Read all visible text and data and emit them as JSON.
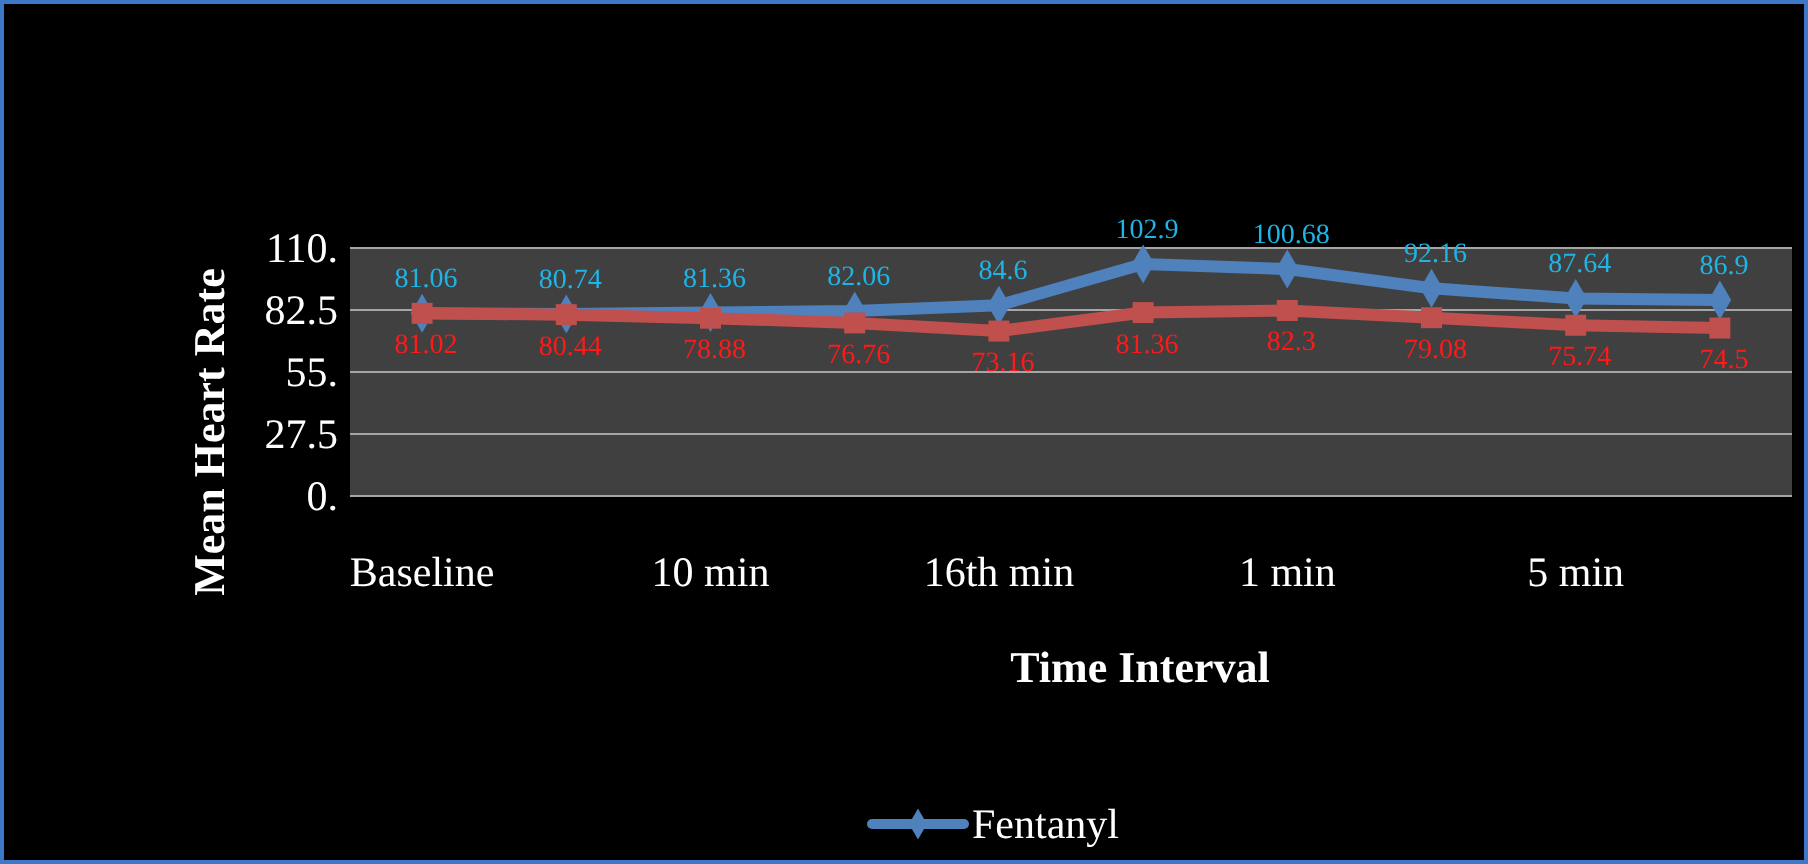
{
  "chart_data": {
    "type": "line",
    "xlabel": "Time Interval",
    "ylabel": "Mean Heart Rate",
    "categories": [
      "Baseline",
      null,
      "10 min",
      null,
      "16th min",
      null,
      "1 min",
      null,
      "5 min",
      null
    ],
    "series": [
      {
        "name": "Fentanyl",
        "color": "#4f81bd",
        "marker": "diamond",
        "values": [
          81.06,
          80.74,
          81.36,
          82.06,
          84.6,
          102.9,
          100.68,
          92.16,
          87.64,
          86.9
        ]
      },
      {
        "color": "#c0504d",
        "marker": "square",
        "values": [
          81.02,
          80.44,
          78.88,
          76.76,
          73.16,
          81.36,
          82.3,
          79.08,
          75.74,
          74.5
        ]
      }
    ],
    "ylim": [
      0,
      110
    ],
    "yticks": [
      {
        "value": 0,
        "label": "0."
      },
      27.5,
      {
        "value": 55,
        "label": "55."
      },
      82.5,
      {
        "value": 110,
        "label": "110."
      }
    ],
    "grid": "y",
    "data_labels": true,
    "legend": "bottom"
  }
}
